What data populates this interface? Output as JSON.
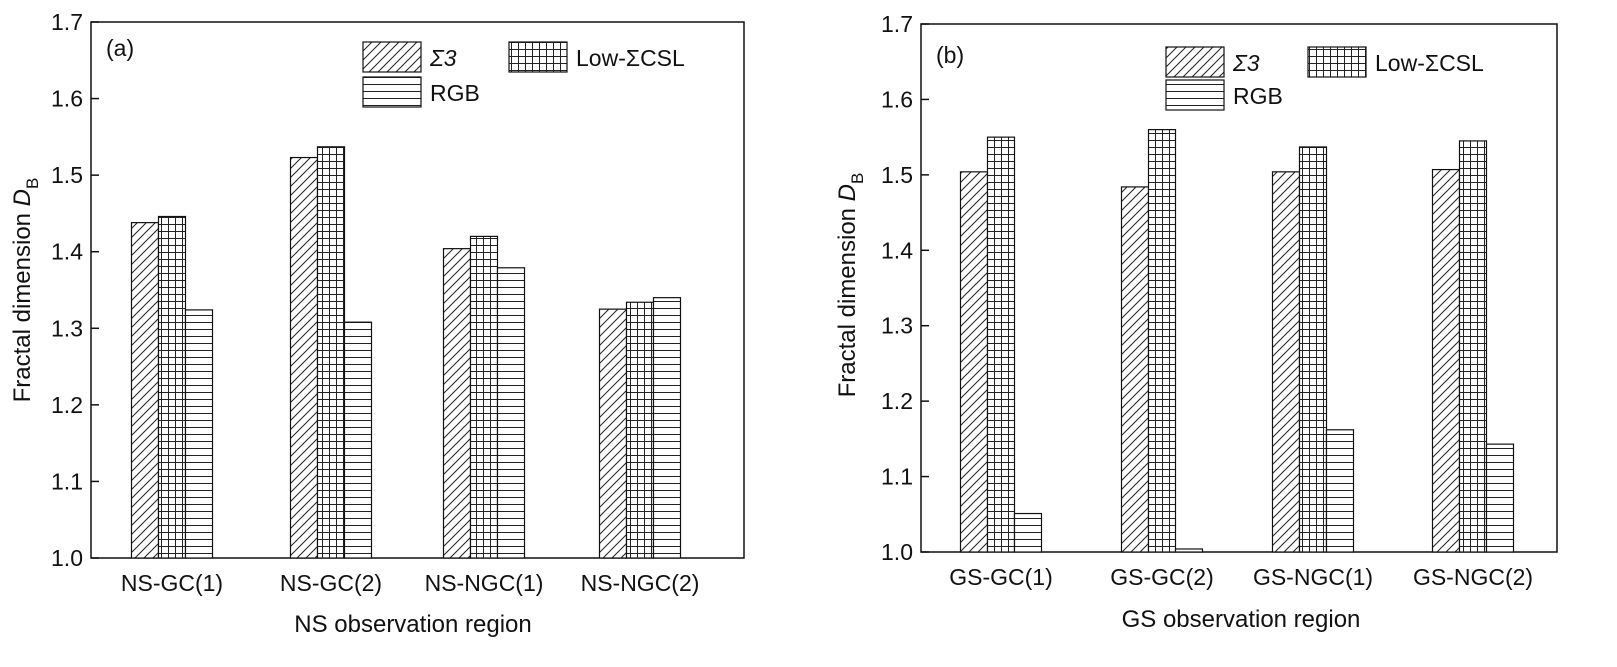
{
  "chart_data": [
    {
      "type": "bar",
      "panel_label": "(a)",
      "categories": [
        "NS-GC(1)",
        "NS-GC(2)",
        "NS-NGC(1)",
        "NS-NGC(2)"
      ],
      "series": [
        {
          "name": "Σ3",
          "pattern": "diagonal",
          "values": [
            1.438,
            1.523,
            1.404,
            1.325
          ]
        },
        {
          "name": "Low-ΣCSL",
          "pattern": "grid",
          "values": [
            1.446,
            1.537,
            1.42,
            1.334
          ]
        },
        {
          "name": "RGB",
          "pattern": "horizontal",
          "values": [
            1.324,
            1.308,
            1.379,
            1.34
          ]
        }
      ],
      "xlabel": "NS observation  region",
      "ylabel_main": "Fractal dimension ",
      "ylabel_var": "D",
      "ylabel_sub": "B",
      "ylim": [
        1.0,
        1.7
      ],
      "yticks": [
        "1.0",
        "1.1",
        "1.2",
        "1.3",
        "1.4",
        "1.5",
        "1.6",
        "1.7"
      ],
      "legend_placement": "top-right",
      "grid": false
    },
    {
      "type": "bar",
      "panel_label": "(b)",
      "categories": [
        "GS-GC(1)",
        "GS-GC(2)",
        "GS-NGC(1)",
        "GS-NGC(2)"
      ],
      "series": [
        {
          "name": "Σ3",
          "pattern": "diagonal",
          "values": [
            1.504,
            1.484,
            1.504,
            1.507
          ]
        },
        {
          "name": "Low-ΣCSL",
          "pattern": "grid",
          "values": [
            1.55,
            1.56,
            1.537,
            1.545
          ]
        },
        {
          "name": "RGB",
          "pattern": "horizontal",
          "values": [
            1.051,
            1.004,
            1.162,
            1.143
          ]
        }
      ],
      "xlabel": "GS observation  region",
      "ylabel_main": "Fractal dimension ",
      "ylabel_var": "D",
      "ylabel_sub": "B",
      "ylim": [
        1.0,
        1.7
      ],
      "yticks": [
        "1.0",
        "1.1",
        "1.2",
        "1.3",
        "1.4",
        "1.5",
        "1.6",
        "1.7"
      ],
      "legend_placement": "top-right",
      "grid": false
    }
  ]
}
